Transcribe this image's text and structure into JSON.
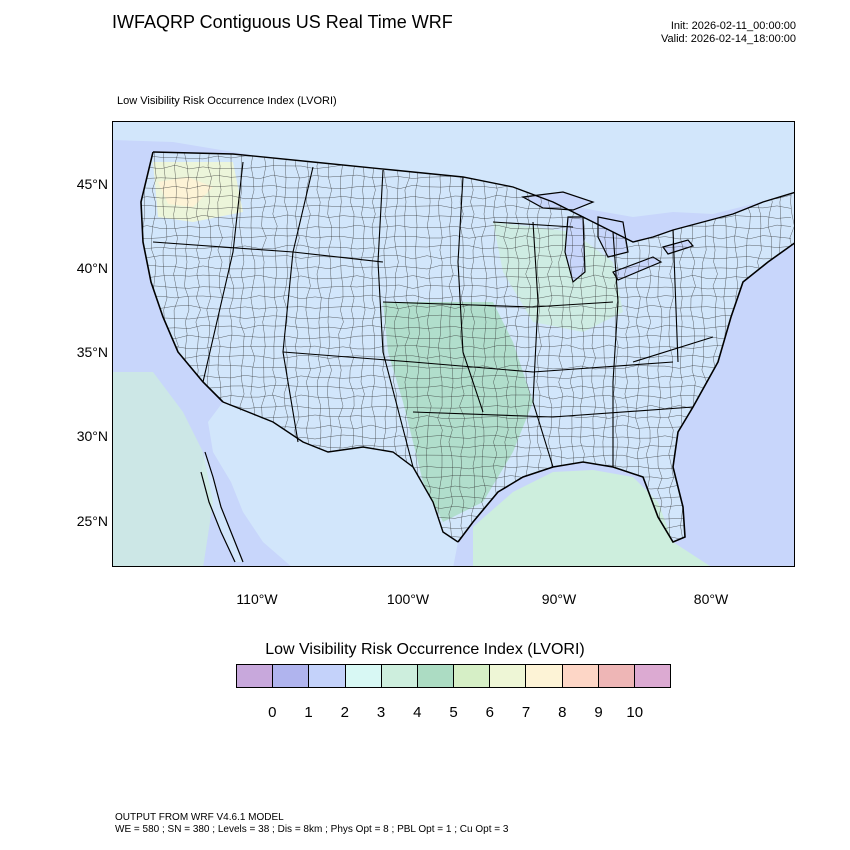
{
  "header": {
    "title": "IWFAQRP Contiguous US Real Time WRF",
    "init": "Init: 2026-02-11_00:00:00",
    "valid": "Valid: 2026-02-14_18:00:00"
  },
  "map": {
    "subtitle": "Low Visibility Risk Occurrence Index   (LVORI)",
    "lat_labels": [
      "45°N",
      "40°N",
      "35°N",
      "30°N",
      "25°N"
    ],
    "lon_labels": [
      "110°W",
      "100°W",
      "90°W",
      "80°W"
    ],
    "colors": {
      "ocean": "#c8d6fb",
      "lake": "#c8d6fb",
      "land_low": "#d2e6fb",
      "land_mid": "#cdeee0",
      "plains": "#b5dcc2",
      "gulf_coast": "#d2ecd6",
      "high": "#f3e8c8",
      "border": "#000000",
      "county": "#2a2a2a"
    }
  },
  "legend": {
    "title": "Low Visibility Risk Occurrence Index  (LVORI)",
    "swatch_colors": [
      "#c8a8dc",
      "#b0b4ee",
      "#c4d2fa",
      "#d8f8f4",
      "#cdeedd",
      "#acdcc3",
      "#d6efc6",
      "#eef6d6",
      "#fdf3d6",
      "#fdd6c6",
      "#eeb6b6",
      "#dcaad2"
    ],
    "ticks": [
      "0",
      "1",
      "2",
      "3",
      "4",
      "5",
      "6",
      "7",
      "8",
      "9",
      "10"
    ]
  },
  "footer": {
    "line1": "OUTPUT FROM WRF V4.6.1 MODEL",
    "line2": "WE = 580 ; SN = 380 ; Levels = 38 ; Dis = 8km ; Phys Opt = 8 ; PBL Opt = 1 ; Cu Opt = 3"
  }
}
